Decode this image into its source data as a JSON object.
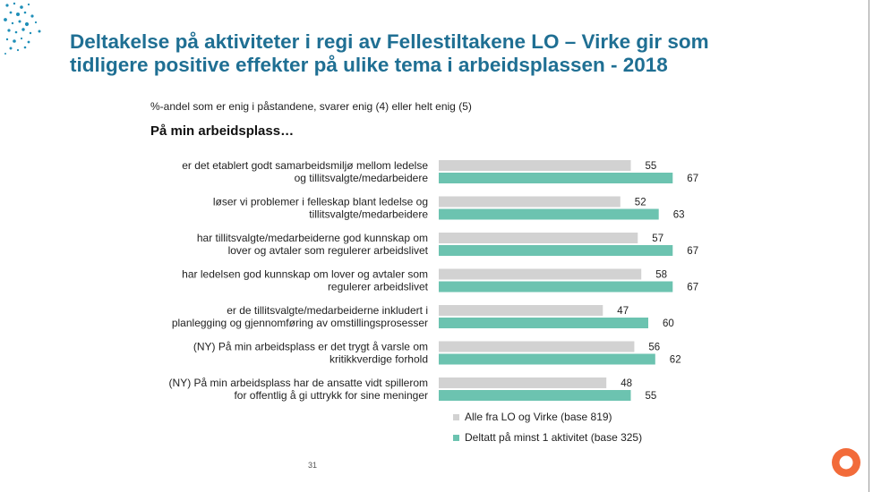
{
  "title_lines": [
    "Deltakelse på aktiviteter i regi av Fellestiltakene LO – Virke gir som",
    "tidligere positive effekter på ulike tema i arbeidsplassen - 2018"
  ],
  "subtitle": "%-andel som er enig i påstandene, svarer enig (4) eller helt enig (5)",
  "group_heading": "På min arbeidsplass…",
  "page_number": "31",
  "colors": {
    "title": "#1f6f93",
    "series_all": "#d2d2d2",
    "series_participated": "#6cc3b0",
    "logo_ring": "#f26b3a",
    "dots": "#1f8fb8"
  },
  "chart_data": {
    "type": "bar",
    "orientation": "horizontal",
    "categories": [
      [
        "er det etablert godt samarbeidsmiljø mellom ledelse",
        "og tillitsvalgte/medarbeidere"
      ],
      [
        "løser vi problemer i felleskap blant ledelse og",
        "tillitsvalgte/medarbeidere"
      ],
      [
        "har tillitsvalgte/medarbeiderne god kunnskap om",
        "lover og avtaler som regulerer arbeidslivet"
      ],
      [
        "har ledelsen god kunnskap om lover og avtaler som",
        "regulerer arbeidslivet"
      ],
      [
        "er de tillitsvalgte/medarbeiderne inkludert i",
        "planlegging og gjennomføring av omstillingsprosesser"
      ],
      [
        "(NY) På min arbeidsplass er det trygt å varsle om",
        "kritikkverdige forhold"
      ],
      [
        "(NY) På min arbeidsplass har de ansatte vidt spillerom",
        "for offentlig å gi uttrykk for sine meninger"
      ]
    ],
    "series": [
      {
        "name": "Alle fra LO og Virke (base 819)",
        "values": [
          55,
          52,
          57,
          58,
          47,
          56,
          48
        ]
      },
      {
        "name": "Deltatt på minst 1 aktivitet (base 325)",
        "values": [
          67,
          63,
          67,
          67,
          60,
          62,
          55
        ]
      }
    ],
    "xlim": [
      0,
      100
    ],
    "grid": false,
    "legend_position": "bottom-right"
  }
}
